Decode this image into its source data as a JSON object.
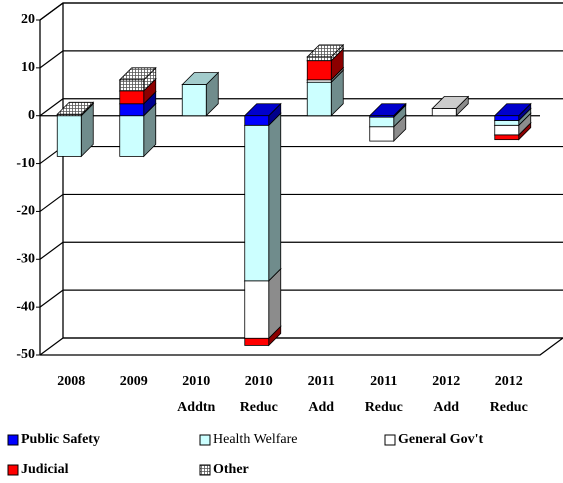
{
  "chart_data": {
    "type": "bar3d_stacked",
    "categories": [
      "2008",
      "2009",
      "2010 Addtn",
      "2010 Reduc",
      "2011 Add",
      "2011 Reduc",
      "2012 Add",
      "2012 Reduc"
    ],
    "series": [
      {
        "name": "Public Safety",
        "color": "#0000ff",
        "values": [
          0,
          2.5,
          0,
          -2,
          0,
          -0.3,
          0,
          -1
        ]
      },
      {
        "name": "Health Welfare",
        "color": "#ccffff",
        "values": [
          -8.5,
          -8.5,
          6.5,
          -32.5,
          7,
          -2,
          0,
          -1
        ]
      },
      {
        "name": "General Gov't",
        "color": "#ffffff",
        "values": [
          0,
          0,
          0,
          -12,
          0.5,
          -3,
          1.5,
          -2
        ]
      },
      {
        "name": "Judicial",
        "color": "#ff0000",
        "values": [
          0,
          2.7,
          0,
          -1.5,
          4,
          0,
          0,
          -1
        ]
      },
      {
        "name": "Other",
        "color": "#c0c0c0",
        "pattern": "crosshatch",
        "values": [
          0.3,
          2.3,
          0,
          0,
          0.8,
          0,
          0,
          0
        ]
      }
    ],
    "ylim": [
      -50,
      20
    ],
    "yticks": [
      -50,
      -40,
      -30,
      -20,
      -10,
      0,
      10,
      20
    ],
    "grid": true
  }
}
